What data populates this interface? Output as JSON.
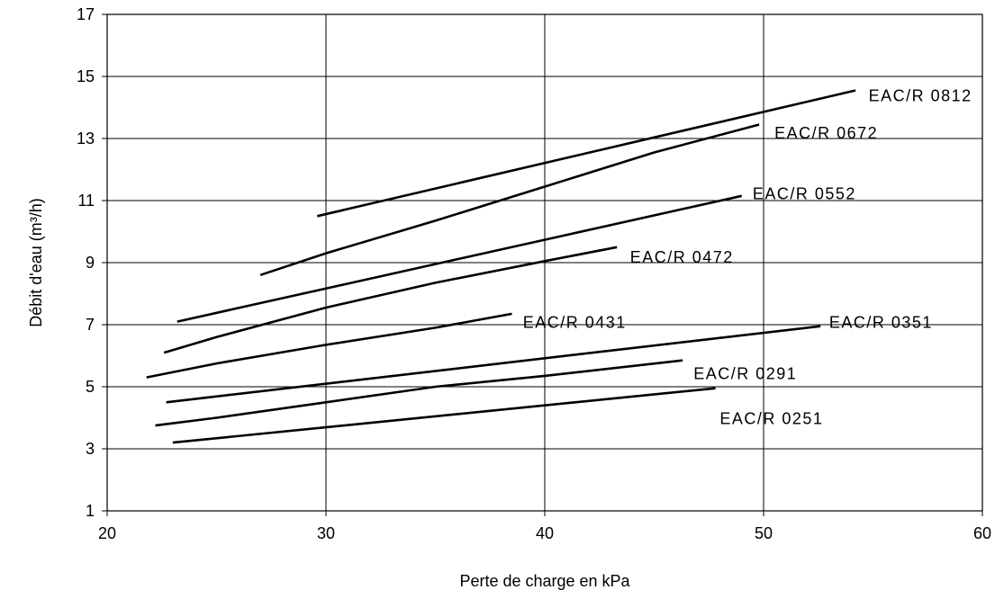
{
  "chart_data": {
    "type": "line",
    "title": "",
    "xlabel": "Perte de charge en kPa",
    "ylabel": "Débit d'eau (m³/h)",
    "xlim": [
      20,
      60
    ],
    "ylim": [
      1,
      17
    ],
    "xticks": [
      20,
      30,
      40,
      50,
      60
    ],
    "yticks": [
      1,
      3,
      5,
      7,
      9,
      11,
      13,
      15,
      17
    ],
    "grid": true,
    "legend": "none",
    "series": [
      {
        "name": "EAC/R 0812",
        "x": [
          29.6,
          54.2
        ],
        "y": [
          10.5,
          14.55
        ]
      },
      {
        "name": "EAC/R 0672",
        "x": [
          27.0,
          30.0,
          35.0,
          40.0,
          45.0,
          49.8
        ],
        "y": [
          8.6,
          9.3,
          10.35,
          11.45,
          12.55,
          13.45
        ]
      },
      {
        "name": "EAC/R 0552",
        "x": [
          23.2,
          49.0
        ],
        "y": [
          7.1,
          11.15
        ]
      },
      {
        "name": "EAC/R 0472",
        "x": [
          22.6,
          25.0,
          30.0,
          35.0,
          40.0,
          43.3
        ],
        "y": [
          6.1,
          6.6,
          7.55,
          8.35,
          9.05,
          9.5
        ]
      },
      {
        "name": "EAC/R 0431",
        "x": [
          21.8,
          25.0,
          30.0,
          35.0,
          38.5
        ],
        "y": [
          5.3,
          5.75,
          6.35,
          6.9,
          7.35
        ]
      },
      {
        "name": "EAC/R 0351",
        "x": [
          22.7,
          52.6
        ],
        "y": [
          4.5,
          6.95
        ]
      },
      {
        "name": "EAC/R 0291",
        "x": [
          22.2,
          25.0,
          30.0,
          35.0,
          40.0,
          46.3
        ],
        "y": [
          3.75,
          4.0,
          4.5,
          5.0,
          5.35,
          5.85
        ]
      },
      {
        "name": "EAC/R 0251",
        "x": [
          23.0,
          47.8
        ],
        "y": [
          3.2,
          4.95
        ]
      }
    ],
    "annotations": [
      {
        "text": "EAC/R 0812",
        "x": 54.8,
        "y": 14.4
      },
      {
        "text": "EAC/R 0672",
        "x": 50.5,
        "y": 13.2
      },
      {
        "text": "EAC/R 0552",
        "x": 49.5,
        "y": 11.25
      },
      {
        "text": "EAC/R 0472",
        "x": 43.9,
        "y": 9.2
      },
      {
        "text": "EAC/R 0431",
        "x": 39.0,
        "y": 7.1
      },
      {
        "text": "EAC/R 0351",
        "x": 53.0,
        "y": 7.1
      },
      {
        "text": "EAC/R 0291",
        "x": 46.8,
        "y": 5.45
      },
      {
        "text": "EAC/R 0251",
        "x": 48.0,
        "y": 4.0
      }
    ]
  }
}
